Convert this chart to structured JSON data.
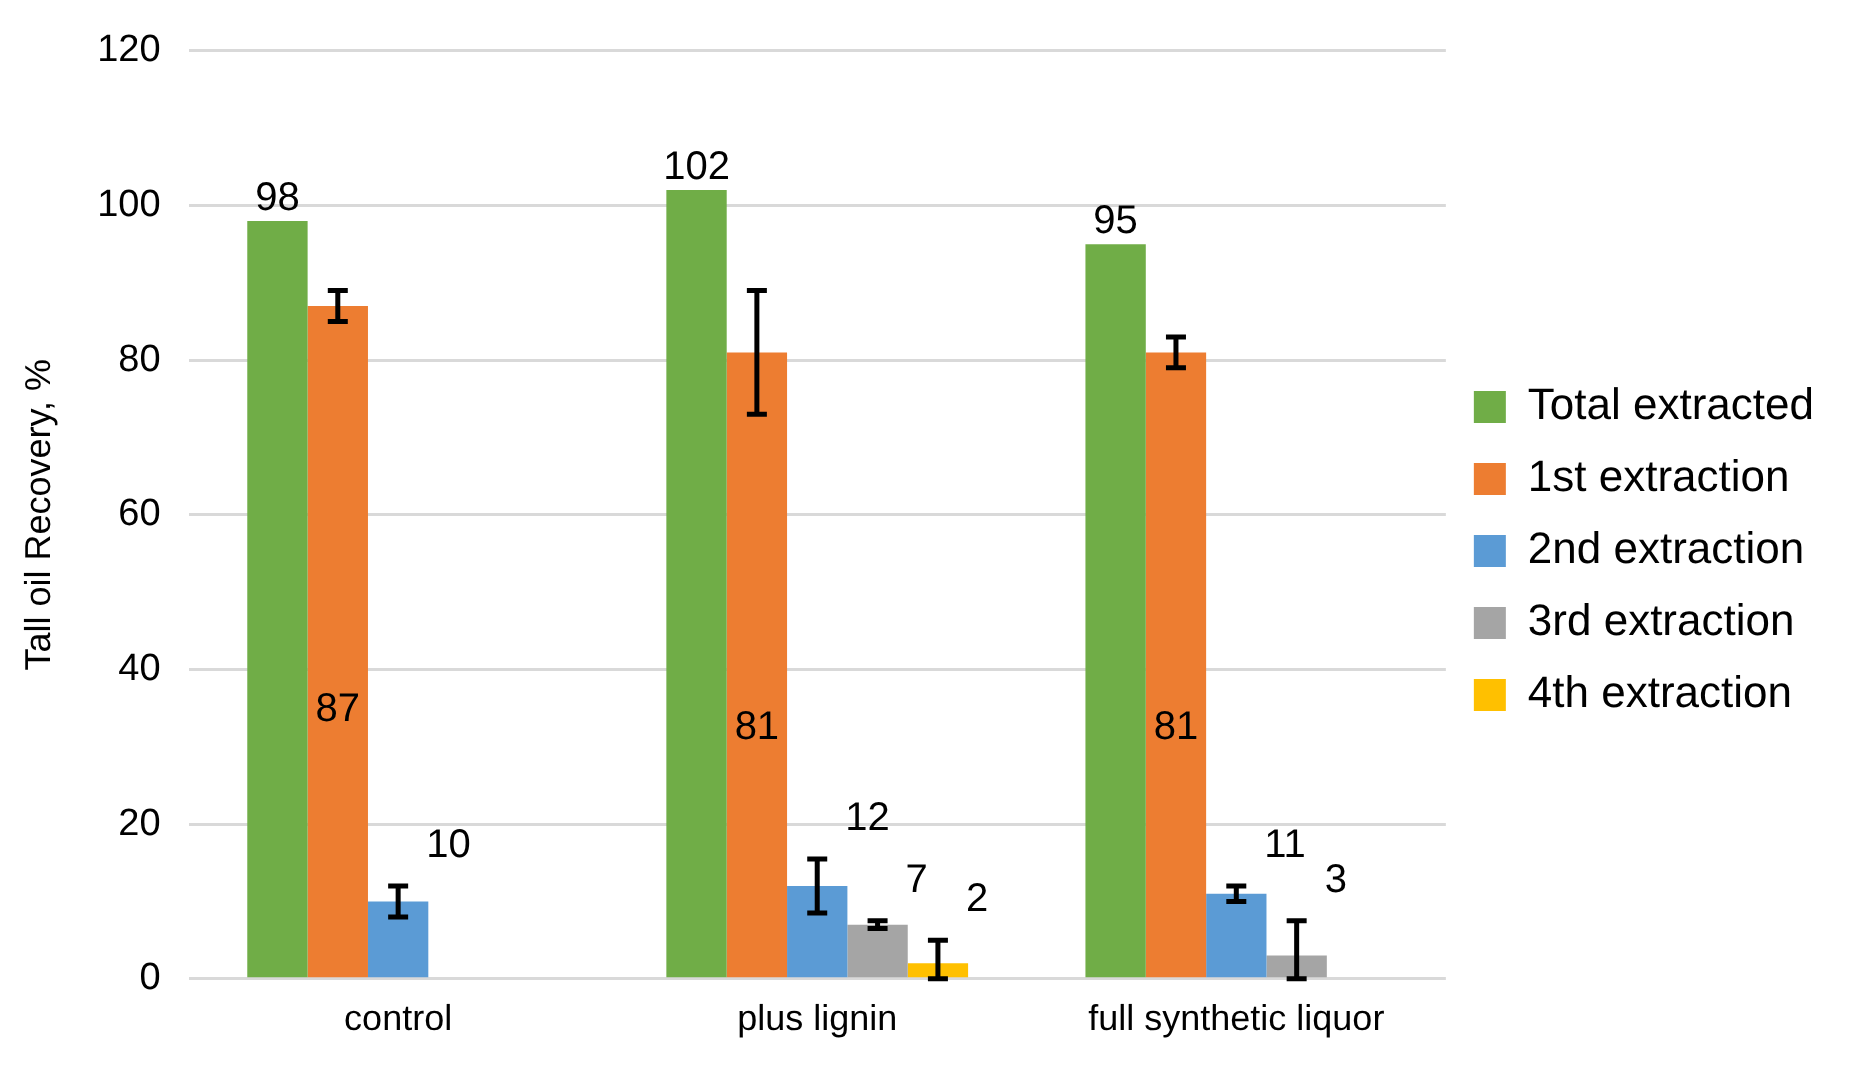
{
  "chart_data": {
    "type": "bar",
    "ylabel": "Tall oil Recovery, %",
    "categories": [
      "control",
      "plus lignin",
      "full synthetic liquor"
    ],
    "series": [
      {
        "name": "Total extracted",
        "color": "#70ad47",
        "values": [
          98,
          102,
          95
        ]
      },
      {
        "name": "1st extraction",
        "color": "#ed7d31",
        "values": [
          87,
          81,
          81
        ],
        "errors": [
          2,
          8,
          2
        ]
      },
      {
        "name": "2nd extraction",
        "color": "#5b9bd5",
        "values": [
          10,
          12,
          11
        ],
        "errors": [
          2,
          3.5,
          1
        ]
      },
      {
        "name": "3rd extraction",
        "color": "#a5a5a5",
        "values": [
          null,
          7,
          3
        ],
        "errors": [
          null,
          0.5,
          [
            0,
            7.5
          ]
        ]
      },
      {
        "name": "4th extraction",
        "color": "#ffc000",
        "values": [
          null,
          2,
          null
        ],
        "errors": [
          null,
          [
            0,
            5
          ],
          null
        ]
      }
    ],
    "ylim": [
      0,
      120
    ],
    "yticks": [
      0,
      20,
      40,
      60,
      80,
      100,
      120
    ],
    "grid": "y",
    "legend": "right",
    "data_labels": true
  }
}
